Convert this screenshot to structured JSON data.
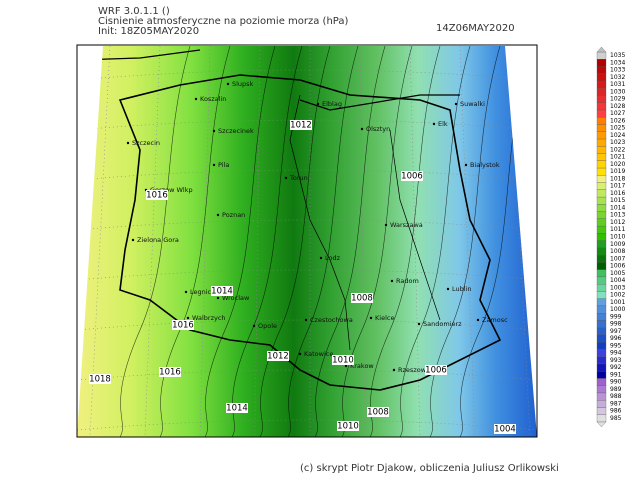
{
  "header": {
    "model": "WRF 3.0.1.1 ()",
    "title": "Cisnienie atmosferyczne na poziomie morza (hPa)",
    "init": "Init: 18Z05MAY2020",
    "valid": "14Z06MAY2020"
  },
  "cities": [
    "Slupsk",
    "Koszalin",
    "Elblag",
    "Suwalki",
    "Szczecinek",
    "Olsztyn",
    "Elk",
    "Szczecin",
    "Bialystok",
    "Pila",
    "Torun",
    "Gorzow Wlkp",
    "Poznan",
    "Warszawa",
    "Zielona Gora",
    "Lodz",
    "Radom",
    "Lublin",
    "Legnica",
    "Wroclaw",
    "Kielce",
    "Zamosc",
    "Walbrzych",
    "Opole",
    "Czestochowa",
    "Sandomierz",
    "Katowice",
    "Krakow",
    "Rzeszow"
  ],
  "isobar_labels": [
    1012,
    1006,
    1016,
    1014,
    1008,
    1016,
    1012,
    1010,
    1016,
    1006,
    1018,
    1014,
    1008,
    1010,
    1004
  ],
  "colorbar": {
    "levels": [
      1035,
      1034,
      1033,
      1032,
      1031,
      1030,
      1029,
      1028,
      1027,
      1026,
      1025,
      1024,
      1023,
      1022,
      1021,
      1020,
      1019,
      1018,
      1017,
      1016,
      1015,
      1014,
      1013,
      1012,
      1011,
      1010,
      1009,
      1008,
      1007,
      1006,
      1005,
      1004,
      1003,
      1002,
      1001,
      1000,
      999,
      998,
      997,
      996,
      995,
      994,
      993,
      992,
      991,
      990,
      989,
      988,
      987,
      986,
      985
    ]
  },
  "credits": "(c) skrypt Piotr Djakow, obliczenia Juliusz Orlikowski"
}
